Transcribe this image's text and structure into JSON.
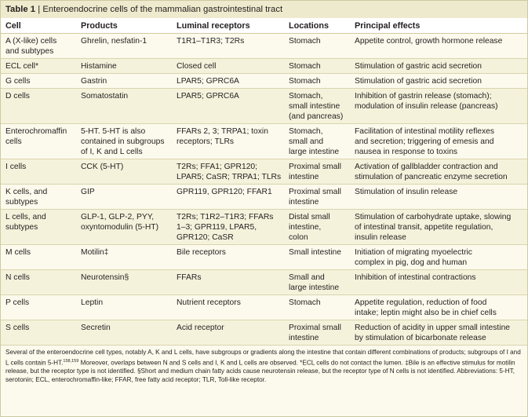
{
  "caption": {
    "number": "Table 1",
    "separator": " | ",
    "title": "Enteroendocrine cells of the mammalian gastrointestinal tract"
  },
  "columns": [
    "Cell",
    "Products",
    "Luminal receptors",
    "Locations",
    "Principal effects"
  ],
  "rows": [
    {
      "cell": "A (X-like) cells\nand subtypes",
      "products": "Ghrelin, nesfatin-1",
      "receptors": "T1R1–T1R3; T2Rs",
      "locations": "Stomach",
      "effects": "Appetite control, growth hormone release"
    },
    {
      "cell": "ECL cell*",
      "products": "Histamine",
      "receptors": "Closed cell",
      "locations": "Stomach",
      "effects": "Stimulation of gastric acid secretion"
    },
    {
      "cell": "G cells",
      "products": "Gastrin",
      "receptors": "LPAR5; GPRC6A",
      "locations": "Stomach",
      "effects": "Stimulation of gastric acid secretion"
    },
    {
      "cell": "D cells",
      "products": "Somatostatin",
      "receptors": "LPAR5; GPRC6A",
      "locations": "Stomach,\nsmall intestine\n(and pancreas)",
      "effects": "Inhibition of gastrin release (stomach);\nmodulation of insulin release (pancreas)"
    },
    {
      "cell": "Enterochromaffin\ncells",
      "products": "5-HT. 5-HT is also\ncontained in subgroups\nof I, K and L cells",
      "receptors": "FFARs 2, 3; TRPA1; toxin\nreceptors; TLRs",
      "locations": "Stomach,\nsmall and\nlarge intestine",
      "effects": "Facilitation of intestinal motility reflexes\nand secretion; triggering of emesis and\nnausea in response to toxins"
    },
    {
      "cell": "I cells",
      "products": "CCK (5-HT)",
      "receptors": "T2Rs; FFA1; GPR120;\nLPAR5; CaSR; TRPA1; TLRs",
      "locations": "Proximal small\nintestine",
      "effects": "Activation of gallbladder contraction and\nstimulation of pancreatic enzyme secretion"
    },
    {
      "cell": "K cells, and\nsubtypes",
      "products": "GIP",
      "receptors": "GPR119, GPR120; FFAR1",
      "locations": "Proximal small\nintestine",
      "effects": "Stimulation of insulin release"
    },
    {
      "cell": "L cells, and\nsubtypes",
      "products": "GLP-1, GLP-2, PYY,\noxyntomodulin (5-HT)",
      "receptors": "T2Rs; T1R2–T1R3; FFARs\n1–3; GPR119, LPAR5,\nGPR120; CaSR",
      "locations": "Distal small\nintestine,\ncolon",
      "effects": "Stimulation of carbohydrate uptake, slowing\nof intestinal transit, appetite regulation,\ninsulin release"
    },
    {
      "cell": "M cells",
      "products": "Motilin‡",
      "receptors": "Bile receptors",
      "locations": "Small intestine",
      "effects": "Initiation of migrating myoelectric\ncomplex in pig, dog and human"
    },
    {
      "cell": "N cells",
      "products": "Neurotensin§",
      "receptors": "FFARs",
      "locations": "Small and\nlarge intestine",
      "effects": "Inhibition of intestinal contractions"
    },
    {
      "cell": "P cells",
      "products": "Leptin",
      "receptors": "Nutrient receptors",
      "locations": "Stomach",
      "effects": "Appetite regulation, reduction of food\nintake; leptin might also be in chief cells"
    },
    {
      "cell": "S cells",
      "products": "Secretin",
      "receptors": "Acid receptor",
      "locations": "Proximal small\nintestine",
      "effects": "Reduction of acidity in upper small intestine\nby stimulation of bicarbonate release"
    }
  ],
  "footnote": {
    "part1": "Several of the enteroendocrine cell types, notably A, K and L cells, have subgroups or gradients along the intestine that contain different combinations of products; subgroups of I and L cells contain 5-HT.",
    "refs": "158,159",
    "part2": " Moreover, overlaps between N and S cells and I, K and L cells are observed. *ECL cells do not contact the lumen. ‡Bile is an effective stimulus for motilin release, but the receptor type is not identified. §Short and medium chain fatty acids cause neurotensin release, but the receptor type of N cells is not identified. Abbreviations: 5-HT, serotonin; ECL, enterochromaffin-like; FFAR, free fatty acid receptor; TLR, Toll-like receptor."
  }
}
